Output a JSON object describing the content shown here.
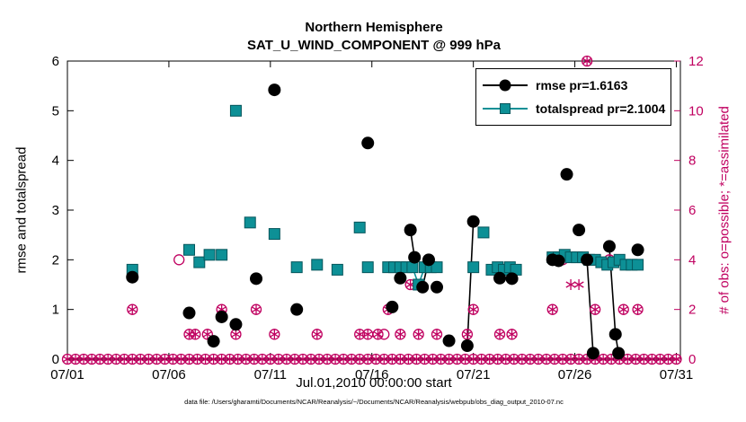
{
  "chart_data": {
    "type": "scatter",
    "title": "Northern Hemisphere",
    "subtitle": "SAT_U_WIND_COMPONENT @ 999 hPa",
    "xlabel": "Jul.01,2010 00:00:00 start",
    "ylabel_left": "rmse and totalspread",
    "ylabel_right": "# of obs: o=possible; *=assimilated",
    "caption": "data file: /Users/gharamti/Documents/NCAR/Reanalysis/~/Documents/NCAR/Reanalysis/webpub/obs_diag_output_2010-07.nc",
    "x_range": [
      1,
      31.2
    ],
    "y_left_range": [
      0,
      6
    ],
    "y_right_range": [
      0,
      12
    ],
    "x_ticks": [
      {
        "day": 1,
        "label": "07/01"
      },
      {
        "day": 6,
        "label": "07/06"
      },
      {
        "day": 11,
        "label": "07/11"
      },
      {
        "day": 16,
        "label": "07/16"
      },
      {
        "day": 21,
        "label": "07/21"
      },
      {
        "day": 26,
        "label": "07/26"
      },
      {
        "day": 31,
        "label": "07/31"
      }
    ],
    "y_left_ticks": [
      0,
      1,
      2,
      3,
      4,
      5,
      6
    ],
    "y_right_ticks": [
      0,
      2,
      4,
      6,
      8,
      10,
      12
    ],
    "grid": false,
    "legend_position": "top-right-inside",
    "legend": [
      {
        "label": "rmse pr=1.6163",
        "marker": "filled-circle",
        "color": "#000000"
      },
      {
        "label": "totalspread pr=2.1004",
        "marker": "filled-square",
        "color": "#0d9096"
      }
    ],
    "colors": {
      "rmse": "#000000",
      "totalspread": "#0d9096",
      "totalspread_edge": "#06565c",
      "obs": "#c00060"
    },
    "series": {
      "rmse": {
        "name": "rmse",
        "axis": "left",
        "points": [
          [
            4.2,
            1.65
          ],
          [
            7.0,
            0.93
          ],
          [
            8.2,
            0.36
          ],
          [
            8.6,
            0.85
          ],
          [
            9.3,
            0.7
          ],
          [
            10.3,
            1.62
          ],
          [
            11.2,
            5.42
          ],
          [
            12.3,
            1.0
          ],
          [
            15.8,
            4.35
          ],
          [
            17.0,
            1.05
          ],
          [
            17.4,
            1.63
          ],
          [
            17.9,
            2.6
          ],
          [
            18.1,
            2.05
          ],
          [
            18.5,
            1.45
          ],
          [
            18.8,
            2.0
          ],
          [
            19.2,
            1.45
          ],
          [
            19.8,
            0.37
          ],
          [
            20.7,
            0.27
          ],
          [
            21.0,
            2.77
          ],
          [
            22.3,
            1.63
          ],
          [
            22.9,
            1.62
          ],
          [
            24.9,
            2.0
          ],
          [
            25.2,
            1.98
          ],
          [
            25.6,
            3.72
          ],
          [
            26.2,
            2.6
          ],
          [
            26.6,
            2.0
          ],
          [
            26.9,
            0.12
          ],
          [
            27.7,
            2.27
          ],
          [
            28.0,
            0.5
          ],
          [
            28.15,
            0.12
          ],
          [
            29.1,
            2.2
          ]
        ]
      },
      "totalspread": {
        "name": "totalspread",
        "axis": "left",
        "points": [
          [
            4.2,
            1.8
          ],
          [
            7.0,
            2.2
          ],
          [
            7.5,
            1.95
          ],
          [
            8.0,
            2.1
          ],
          [
            8.6,
            2.1
          ],
          [
            9.3,
            5.0
          ],
          [
            10.0,
            2.75
          ],
          [
            11.2,
            2.52
          ],
          [
            12.3,
            1.85
          ],
          [
            13.3,
            1.9
          ],
          [
            14.3,
            1.8
          ],
          [
            15.4,
            2.65
          ],
          [
            15.8,
            1.85
          ],
          [
            16.8,
            1.85
          ],
          [
            17.1,
            1.85
          ],
          [
            17.4,
            1.85
          ],
          [
            17.7,
            1.85
          ],
          [
            18.0,
            1.85
          ],
          [
            18.3,
            1.5
          ],
          [
            18.6,
            1.85
          ],
          [
            18.9,
            1.85
          ],
          [
            19.2,
            1.85
          ],
          [
            21.0,
            1.85
          ],
          [
            21.5,
            2.55
          ],
          [
            21.9,
            1.8
          ],
          [
            22.2,
            1.85
          ],
          [
            22.5,
            1.8
          ],
          [
            22.8,
            1.85
          ],
          [
            23.1,
            1.8
          ],
          [
            24.9,
            2.05
          ],
          [
            25.2,
            2.05
          ],
          [
            25.5,
            2.1
          ],
          [
            25.8,
            2.05
          ],
          [
            26.1,
            2.05
          ],
          [
            26.4,
            2.05
          ],
          [
            26.7,
            2.0
          ],
          [
            27.0,
            2.0
          ],
          [
            27.3,
            1.95
          ],
          [
            27.6,
            1.9
          ],
          [
            27.9,
            1.95
          ],
          [
            28.2,
            2.0
          ],
          [
            28.5,
            1.9
          ],
          [
            28.8,
            1.9
          ],
          [
            29.1,
            1.9
          ]
        ]
      },
      "obs_baseline": {
        "start": 1.0,
        "end": 31.1,
        "step": 0.4,
        "value": 0,
        "type": "both"
      },
      "obs_markers": [
        {
          "day": 4.2,
          "count": 2,
          "type": "both"
        },
        {
          "day": 6.5,
          "count": 4,
          "type": "possible"
        },
        {
          "day": 7.0,
          "count": 1,
          "type": "both"
        },
        {
          "day": 7.3,
          "count": 1,
          "type": "both"
        },
        {
          "day": 7.9,
          "count": 1,
          "type": "both"
        },
        {
          "day": 8.6,
          "count": 2,
          "type": "both"
        },
        {
          "day": 9.3,
          "count": 1,
          "type": "both"
        },
        {
          "day": 10.3,
          "count": 2,
          "type": "both"
        },
        {
          "day": 11.2,
          "count": 1,
          "type": "both"
        },
        {
          "day": 12.3,
          "count": 2,
          "type": "both"
        },
        {
          "day": 13.3,
          "count": 1,
          "type": "both"
        },
        {
          "day": 15.4,
          "count": 1,
          "type": "both"
        },
        {
          "day": 15.8,
          "count": 1,
          "type": "both"
        },
        {
          "day": 16.3,
          "count": 1,
          "type": "both"
        },
        {
          "day": 16.6,
          "count": 1,
          "type": "possible"
        },
        {
          "day": 16.8,
          "count": 2,
          "type": "both"
        },
        {
          "day": 17.4,
          "count": 1,
          "type": "both"
        },
        {
          "day": 17.9,
          "count": 3,
          "type": "both"
        },
        {
          "day": 18.3,
          "count": 1,
          "type": "both"
        },
        {
          "day": 19.2,
          "count": 1,
          "type": "both"
        },
        {
          "day": 20.7,
          "count": 1,
          "type": "both"
        },
        {
          "day": 21.0,
          "count": 2,
          "type": "both"
        },
        {
          "day": 22.3,
          "count": 1,
          "type": "both"
        },
        {
          "day": 22.9,
          "count": 1,
          "type": "both"
        },
        {
          "day": 24.9,
          "count": 2,
          "type": "both"
        },
        {
          "day": 25.4,
          "count": 4,
          "type": "possible"
        },
        {
          "day": 25.8,
          "count": 3,
          "type": "assimilated"
        },
        {
          "day": 26.2,
          "count": 3,
          "type": "assimilated"
        },
        {
          "day": 26.6,
          "count": 12,
          "type": "both"
        },
        {
          "day": 27.0,
          "count": 2,
          "type": "both"
        },
        {
          "day": 27.7,
          "count": 4,
          "type": "both"
        },
        {
          "day": 28.4,
          "count": 2,
          "type": "both"
        },
        {
          "day": 29.1,
          "count": 2,
          "type": "both"
        }
      ]
    }
  }
}
